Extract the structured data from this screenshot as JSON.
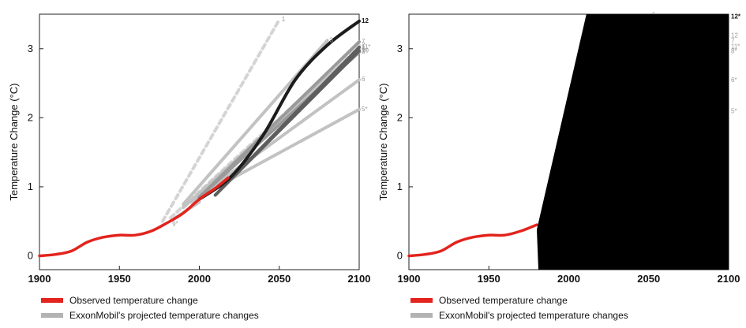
{
  "chart_data": [
    {
      "type": "line",
      "ylabel": "Temperature Change (°C)",
      "xlim": [
        1900,
        2100
      ],
      "ylim": [
        -0.2,
        3.5
      ],
      "xticks": [
        "1900",
        "1950",
        "2000",
        "2050",
        "2100"
      ],
      "yticks": [
        "0",
        "1",
        "2",
        "3"
      ],
      "observed": {
        "x": [
          1900,
          1910,
          1920,
          1930,
          1940,
          1950,
          1960,
          1970,
          1980,
          1990,
          2000,
          2010,
          2018
        ],
        "y": [
          0.0,
          0.02,
          0.07,
          0.2,
          0.27,
          0.3,
          0.3,
          0.36,
          0.48,
          0.62,
          0.82,
          0.98,
          1.13
        ]
      },
      "projections": [
        {
          "label": "1",
          "tone": "dashed",
          "x": [
            1977,
            2050
          ],
          "y": [
            0.5,
            3.42
          ]
        },
        {
          "label": "2",
          "tone": "dashed",
          "x": [
            1982,
            2100
          ],
          "y": [
            0.55,
            3.05
          ]
        },
        {
          "label": "3",
          "tone": "light",
          "x": [
            1990,
            2080
          ],
          "y": [
            0.75,
            3.12
          ]
        },
        {
          "label": "4",
          "tone": "light",
          "x": [
            1990,
            2100
          ],
          "y": [
            0.7,
            3.0
          ]
        },
        {
          "label": "5*",
          "tone": "light",
          "x": [
            1995,
            2100
          ],
          "y": [
            0.8,
            2.12
          ]
        },
        {
          "label": "6",
          "tone": "light",
          "x": [
            1995,
            2100
          ],
          "y": [
            0.78,
            2.55
          ]
        },
        {
          "label": "7",
          "tone": "medium",
          "x": [
            2000,
            2100
          ],
          "y": [
            0.85,
            3.1
          ]
        },
        {
          "label": "8*",
          "tone": "medium",
          "x": [
            2000,
            2100
          ],
          "y": [
            0.85,
            2.95
          ]
        },
        {
          "label": "9*",
          "tone": "light",
          "x": [
            1985,
            2000
          ],
          "y": [
            0.55,
            0.78
          ]
        },
        {
          "label": "10",
          "tone": "dark",
          "x": [
            2010,
            2100
          ],
          "y": [
            0.88,
            2.97
          ]
        },
        {
          "label": "11*",
          "tone": "dark",
          "x": [
            2010,
            2100
          ],
          "y": [
            0.88,
            3.02
          ]
        },
        {
          "label": "12",
          "tone": "black",
          "x": [
            2000,
            2020,
            2040,
            2060,
            2080,
            2100
          ],
          "y": [
            0.82,
            1.15,
            1.75,
            2.55,
            3.05,
            3.4
          ]
        }
      ]
    },
    {
      "type": "line",
      "ylabel": "Temperature Change (°C)",
      "xlim": [
        1900,
        2100
      ],
      "ylim": [
        -0.2,
        3.5
      ],
      "xticks": [
        "1900",
        "1950",
        "2000",
        "2050",
        "2100"
      ],
      "yticks": [
        "0",
        "1",
        "2",
        "3"
      ],
      "observed": {
        "x": [
          1900,
          1910,
          1920,
          1930,
          1940,
          1950,
          1960,
          1970,
          1980
        ],
        "y": [
          0.0,
          0.02,
          0.07,
          0.2,
          0.27,
          0.3,
          0.3,
          0.36,
          0.45
        ]
      },
      "side_labels": [
        "1",
        "12*",
        "12",
        "7",
        "11*",
        "8*",
        "6*",
        "5*"
      ],
      "redacted": true
    }
  ],
  "legend": {
    "observed": "Observed temperature change",
    "projected": "ExxonMobil's projected temperature changes"
  },
  "colors": {
    "observed": "#e3231d",
    "dashed": "#d4d4d4",
    "light": "#c2c2c2",
    "medium": "#9a9a9a",
    "dark": "#5e5e5e",
    "black": "#1c1c1c",
    "projected_legend": "#b3b3b3",
    "redaction": "#000000"
  }
}
